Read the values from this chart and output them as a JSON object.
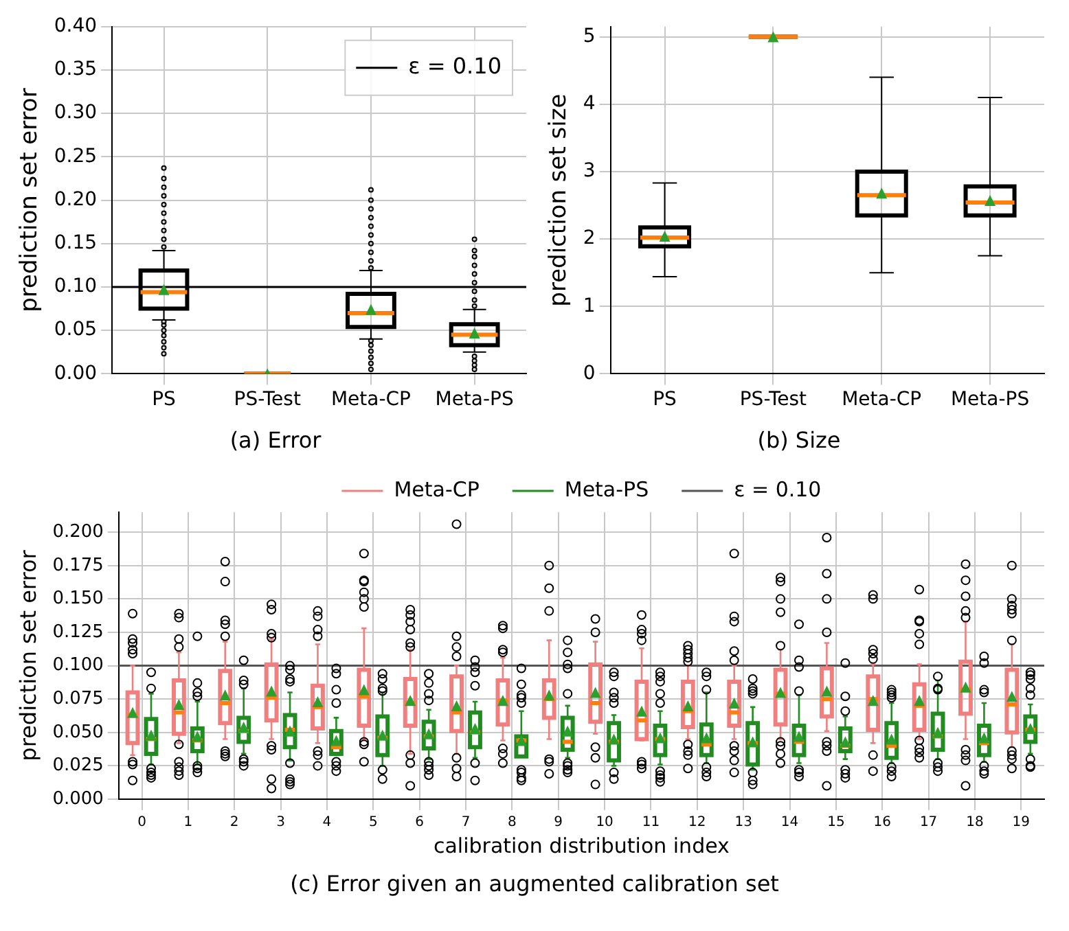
{
  "chart_data": [
    {
      "type": "box",
      "title": "(a) Error",
      "ylabel": "prediction set error",
      "categories": [
        "PS",
        "PS-Test",
        "Meta-CP",
        "Meta-PS"
      ],
      "ylim": [
        0,
        0.4
      ],
      "yticks": [
        {
          "value": 0,
          "label": "0.00"
        },
        0.05,
        {
          "value": 0.1,
          "label": "0.10"
        },
        0.15,
        {
          "value": 0.2,
          "label": "0.20"
        },
        0.25,
        {
          "value": 0.3,
          "label": "0.30"
        },
        0.35,
        {
          "value": 0.4,
          "label": "0.40"
        }
      ],
      "grid": true,
      "legend": "top right",
      "marker": "circle",
      "ref_lines": [
        {
          "axis": "y",
          "value": 0.1,
          "label": "ε = 0.10",
          "color": "#000000"
        }
      ],
      "series": [
        {
          "color": "#000000",
          "boxes": [
            {
              "low": 0.062,
              "q1": 0.075,
              "median": 0.094,
              "q3": 0.119,
              "high": 0.142,
              "mean": 0.097,
              "outliers": [
                0.023,
                0.03,
                0.037,
                0.044,
                0.05,
                0.056,
                0.06,
                0.146,
                0.155,
                0.165,
                0.175,
                0.185,
                0.195,
                0.205,
                0.215,
                0.225,
                0.237
              ]
            },
            {
              "low": 0,
              "q1": 0,
              "median": 0,
              "q3": 0,
              "high": 0,
              "mean": 0
            },
            {
              "low": 0.04,
              "q1": 0.054,
              "median": 0.07,
              "q3": 0.092,
              "high": 0.119,
              "mean": 0.074,
              "outliers": [
                0.005,
                0.012,
                0.019,
                0.026,
                0.033,
                0.038,
                0.122,
                0.13,
                0.14,
                0.15,
                0.16,
                0.17,
                0.18,
                0.19,
                0.2,
                0.212
              ]
            },
            {
              "low": 0.025,
              "q1": 0.033,
              "median": 0.045,
              "q3": 0.057,
              "high": 0.074,
              "mean": 0.047,
              "outliers": [
                0.005,
                0.01,
                0.015,
                0.02,
                0.078,
                0.085,
                0.095,
                0.105,
                0.115,
                0.125,
                0.135,
                0.142,
                0.155
              ]
            }
          ]
        }
      ]
    },
    {
      "type": "box",
      "title": "(b) Size",
      "ylabel": "prediction set size",
      "categories": [
        "PS",
        "PS-Test",
        "Meta-CP",
        "Meta-PS"
      ],
      "ylim": [
        0,
        5.15
      ],
      "yticks": [
        0,
        1,
        2,
        3,
        4,
        5
      ],
      "grid": true,
      "series": [
        {
          "color": "#000000",
          "boxes": [
            {
              "low": 1.44,
              "q1": 1.89,
              "median": 2.02,
              "q3": 2.17,
              "high": 2.83,
              "mean": 2.04
            },
            {
              "low": 5,
              "q1": 5,
              "median": 5,
              "q3": 5,
              "high": 5,
              "mean": 5
            },
            {
              "low": 1.5,
              "q1": 2.35,
              "median": 2.65,
              "q3": 3.0,
              "high": 4.4,
              "mean": 2.68
            },
            {
              "low": 1.75,
              "q1": 2.35,
              "median": 2.54,
              "q3": 2.78,
              "high": 4.1,
              "mean": 2.57
            }
          ]
        }
      ]
    },
    {
      "type": "box",
      "title": "(c) Error given an augmented calibration set",
      "xlabel": "calibration distribution index",
      "ylabel": "prediction set error",
      "categories": [
        "0",
        "1",
        "2",
        "3",
        "4",
        "5",
        "6",
        "7",
        "8",
        "9",
        "10",
        "11",
        "12",
        "13",
        "14",
        "15",
        "16",
        "17",
        "18",
        "19"
      ],
      "ylim": [
        0,
        0.215
      ],
      "yticks": [
        {
          "value": 0,
          "label": "0.000"
        },
        0.025,
        {
          "value": 0.05,
          "label": "0.050"
        },
        0.075,
        {
          "value": 0.1,
          "label": "0.100"
        },
        0.125,
        {
          "value": 0.15,
          "label": "0.150"
        },
        0.175,
        {
          "value": 0.2,
          "label": "0.200"
        }
      ],
      "grid": true,
      "legend": "top",
      "marker": "circle",
      "ref_lines": [
        {
          "axis": "y",
          "value": 0.1,
          "label": "ε = 0.10",
          "color": "#555555"
        }
      ],
      "series": [
        {
          "name": "Meta-CP",
          "color": "#f08080",
          "boxes": [
            {
              "low": 0.033,
              "q1": 0.042,
              "median": 0.063,
              "q3": 0.08,
              "high": 0.1,
              "mean": 0.065,
              "outliers": [
                0.139,
                0.12,
                0.117,
                0.112,
                0.109,
                0.028,
                0.026,
                0.014
              ]
            },
            {
              "low": 0.042,
              "q1": 0.049,
              "median": 0.065,
              "q3": 0.089,
              "high": 0.11,
              "mean": 0.071,
              "outliers": [
                0.139,
                0.136,
                0.12,
                0.114,
                0.041,
                0.028,
                0.024,
                0.021,
                0.018
              ]
            },
            {
              "low": 0.045,
              "q1": 0.057,
              "median": 0.072,
              "q3": 0.096,
              "high": 0.118,
              "mean": 0.078,
              "outliers": [
                0.178,
                0.163,
                0.134,
                0.131,
                0.122,
                0.036,
                0.034,
                0.032
              ]
            },
            {
              "low": 0.045,
              "q1": 0.059,
              "median": 0.076,
              "q3": 0.101,
              "high": 0.12,
              "mean": 0.081,
              "outliers": [
                0.146,
                0.142,
                0.124,
                0.121,
                0.04,
                0.037,
                0.015,
                0.008
              ]
            },
            {
              "low": 0.042,
              "q1": 0.053,
              "median": 0.069,
              "q3": 0.085,
              "high": 0.116,
              "mean": 0.073,
              "outliers": [
                0.141,
                0.137,
                0.127,
                0.122,
                0.036,
                0.033,
                0.025
              ]
            },
            {
              "low": 0.045,
              "q1": 0.055,
              "median": 0.077,
              "q3": 0.097,
              "high": 0.128,
              "mean": 0.082,
              "outliers": [
                0.184,
                0.164,
                0.163,
                0.155,
                0.15,
                0.144,
                0.043,
                0.041,
                0.028
              ]
            },
            {
              "low": 0.034,
              "q1": 0.055,
              "median": 0.072,
              "q3": 0.09,
              "high": 0.112,
              "mean": 0.074,
              "outliers": [
                0.142,
                0.138,
                0.133,
                0.127,
                0.117,
                0.114,
                0.033,
                0.027,
                0.01
              ]
            },
            {
              "low": 0.034,
              "q1": 0.051,
              "median": 0.065,
              "q3": 0.092,
              "high": 0.1,
              "mean": 0.07,
              "outliers": [
                0.206,
                0.122,
                0.114,
                0.107,
                0.031,
                0.023,
                0.017
              ]
            },
            {
              "low": 0.044,
              "q1": 0.056,
              "median": 0.074,
              "q3": 0.089,
              "high": 0.106,
              "mean": 0.074,
              "outliers": [
                0.13,
                0.128,
                0.112,
                0.11,
                0.038,
                0.034,
                0.027
              ]
            },
            {
              "low": 0.045,
              "q1": 0.061,
              "median": 0.075,
              "q3": 0.089,
              "high": 0.119,
              "mean": 0.078,
              "outliers": [
                0.175,
                0.158,
                0.141,
                0.03,
                0.028,
                0.019
              ]
            },
            {
              "low": 0.049,
              "q1": 0.058,
              "median": 0.072,
              "q3": 0.101,
              "high": 0.118,
              "mean": 0.08,
              "outliers": [
                0.135,
                0.125,
                0.039,
                0.031,
                0.011
              ]
            },
            {
              "low": 0.044,
              "q1": 0.045,
              "median": 0.059,
              "q3": 0.088,
              "high": 0.113,
              "mean": 0.066,
              "outliers": [
                0.138,
                0.127,
                0.124,
                0.119,
                0.028,
                0.026,
                0.023
              ]
            },
            {
              "low": 0.045,
              "q1": 0.054,
              "median": 0.066,
              "q3": 0.088,
              "high": 0.1,
              "mean": 0.07,
              "outliers": [
                0.115,
                0.112,
                0.109,
                0.106,
                0.103,
                0.041,
                0.036,
                0.033,
                0.023
              ]
            },
            {
              "low": 0.045,
              "q1": 0.055,
              "median": 0.065,
              "q3": 0.088,
              "high": 0.1,
              "mean": 0.072,
              "outliers": [
                0.184,
                0.137,
                0.133,
                0.111,
                0.104,
                0.04,
                0.036,
                0.029,
                0.02
              ]
            },
            {
              "low": 0.045,
              "q1": 0.056,
              "median": 0.079,
              "q3": 0.097,
              "high": 0.112,
              "mean": 0.08,
              "outliers": [
                0.166,
                0.163,
                0.15,
                0.14,
                0.115,
                0.043,
                0.04,
                0.034,
                0.027
              ]
            },
            {
              "low": 0.051,
              "q1": 0.062,
              "median": 0.075,
              "q3": 0.098,
              "high": 0.117,
              "mean": 0.081,
              "outliers": [
                0.196,
                0.169,
                0.15,
                0.125,
                0.043,
                0.04,
                0.036,
                0.01
              ]
            },
            {
              "low": 0.042,
              "q1": 0.052,
              "median": 0.075,
              "q3": 0.092,
              "high": 0.101,
              "mean": 0.074,
              "outliers": [
                0.153,
                0.15,
                0.112,
                0.109,
                0.105,
                0.033,
                0.021
              ]
            },
            {
              "low": 0.045,
              "q1": 0.052,
              "median": 0.07,
              "q3": 0.086,
              "high": 0.101,
              "mean": 0.074,
              "outliers": [
                0.157,
                0.134,
                0.133,
                0.124,
                0.116,
                0.044,
                0.038,
                0.035,
                0.031
              ]
            },
            {
              "low": 0.045,
              "q1": 0.064,
              "median": 0.082,
              "q3": 0.103,
              "high": 0.133,
              "mean": 0.084,
              "outliers": [
                0.176,
                0.164,
                0.152,
                0.141,
                0.136,
                0.037,
                0.033,
                0.029,
                0.01
              ]
            },
            {
              "low": 0.039,
              "q1": 0.05,
              "median": 0.071,
              "q3": 0.097,
              "high": 0.116,
              "mean": 0.077,
              "outliers": [
                0.175,
                0.15,
                0.145,
                0.142,
                0.139,
                0.119,
                0.036,
                0.033,
                0.03,
                0.023
              ]
            }
          ]
        },
        {
          "name": "Meta-PS",
          "color": "#228b22",
          "boxes": [
            {
              "low": 0.026,
              "q1": 0.034,
              "median": 0.045,
              "q3": 0.06,
              "high": 0.079,
              "mean": 0.048,
              "outliers": [
                0.095,
                0.083,
                0.023,
                0.02,
                0.018,
                0.016
              ]
            },
            {
              "low": 0.026,
              "q1": 0.036,
              "median": 0.044,
              "q3": 0.053,
              "high": 0.073,
              "mean": 0.047,
              "outliers": [
                0.122,
                0.087,
                0.08,
                0.077,
                0.025,
                0.023,
                0.02
              ]
            },
            {
              "low": 0.034,
              "q1": 0.043,
              "median": 0.051,
              "q3": 0.061,
              "high": 0.083,
              "mean": 0.054,
              "outliers": [
                0.104,
                0.089,
                0.086,
                0.03,
                0.028,
                0.025
              ]
            },
            {
              "low": 0.029,
              "q1": 0.039,
              "median": 0.052,
              "q3": 0.063,
              "high": 0.08,
              "mean": 0.051,
              "outliers": [
                0.1,
                0.097,
                0.09,
                0.088,
                0.027,
                0.015,
                0.013,
                0.011
              ]
            },
            {
              "low": 0.033,
              "q1": 0.034,
              "median": 0.039,
              "q3": 0.051,
              "high": 0.061,
              "mean": 0.044,
              "outliers": [
                0.098,
                0.094,
                0.082,
                0.072,
                0.028,
                0.025,
                0.021
              ]
            },
            {
              "low": 0.025,
              "q1": 0.033,
              "median": 0.046,
              "q3": 0.062,
              "high": 0.08,
              "mean": 0.048,
              "outliers": [
                0.094,
                0.09,
                0.083,
                0.081,
                0.022,
                0.015
              ]
            },
            {
              "low": 0.03,
              "q1": 0.038,
              "median": 0.047,
              "q3": 0.058,
              "high": 0.067,
              "mean": 0.049,
              "outliers": [
                0.094,
                0.087,
                0.079,
                0.074,
                0.028,
                0.025,
                0.022,
                0.018
              ]
            },
            {
              "low": 0.031,
              "q1": 0.039,
              "median": 0.05,
              "q3": 0.065,
              "high": 0.073,
              "mean": 0.053,
              "outliers": [
                0.104,
                0.099,
                0.095,
                0.085,
                0.027,
                0.014
              ]
            },
            {
              "low": 0.032,
              "q1": 0.032,
              "median": 0.044,
              "q3": 0.047,
              "high": 0.066,
              "mean": 0.044,
              "outliers": [
                0.098,
                0.086,
                0.078,
                0.076,
                0.072,
                0.022,
                0.02,
                0.016,
                0.014
              ]
            },
            {
              "low": 0.031,
              "q1": 0.037,
              "median": 0.043,
              "q3": 0.061,
              "high": 0.07,
              "mean": 0.051,
              "outliers": [
                0.119,
                0.11,
                0.101,
                0.098,
                0.079,
                0.027,
                0.025,
                0.022,
                0.02
              ]
            },
            {
              "low": 0.025,
              "q1": 0.029,
              "median": 0.043,
              "q3": 0.057,
              "high": 0.063,
              "mean": 0.045,
              "outliers": [
                0.095,
                0.092,
                0.08,
                0.076,
                0.072,
                0.02,
                0.015
              ]
            },
            {
              "low": 0.026,
              "q1": 0.033,
              "median": 0.045,
              "q3": 0.055,
              "high": 0.066,
              "mean": 0.046,
              "outliers": [
                0.095,
                0.092,
                0.088,
                0.079,
                0.072,
                0.021,
                0.018,
                0.016,
                0.013
              ]
            },
            {
              "low": 0.027,
              "q1": 0.033,
              "median": 0.041,
              "q3": 0.056,
              "high": 0.08,
              "mean": 0.046,
              "outliers": [
                0.095,
                0.092,
                0.082,
                0.024,
                0.02,
                0.017
              ]
            },
            {
              "low": 0.022,
              "q1": 0.026,
              "median": 0.042,
              "q3": 0.057,
              "high": 0.069,
              "mean": 0.043,
              "outliers": [
                0.09,
                0.083,
                0.081,
                0.079,
                0.02,
                0.014,
                0.011
              ]
            },
            {
              "low": 0.027,
              "q1": 0.033,
              "median": 0.043,
              "q3": 0.055,
              "high": 0.078,
              "mean": 0.047,
              "outliers": [
                0.131,
                0.104,
                0.099,
                0.081,
                0.022,
                0.02,
                0.017
              ]
            },
            {
              "low": 0.03,
              "q1": 0.036,
              "median": 0.04,
              "q3": 0.053,
              "high": 0.062,
              "mean": 0.043,
              "outliers": [
                0.102,
                0.077,
                0.066,
                0.022,
                0.019,
                0.016
              ]
            },
            {
              "low": 0.027,
              "q1": 0.031,
              "median": 0.04,
              "q3": 0.057,
              "high": 0.072,
              "mean": 0.045,
              "outliers": [
                0.082,
                0.08,
                0.078,
                0.076,
                0.024,
                0.021,
                0.017
              ]
            },
            {
              "low": 0.03,
              "q1": 0.037,
              "median": 0.047,
              "q3": 0.064,
              "high": 0.089,
              "mean": 0.05,
              "outliers": [
                0.092,
                0.083,
                0.082,
                0.027,
                0.024,
                0.021
              ]
            },
            {
              "low": 0.028,
              "q1": 0.033,
              "median": 0.042,
              "q3": 0.055,
              "high": 0.072,
              "mean": 0.046,
              "outliers": [
                0.107,
                0.102,
                0.082,
                0.08,
                0.025,
                0.021,
                0.019
              ]
            },
            {
              "low": 0.034,
              "q1": 0.043,
              "median": 0.052,
              "q3": 0.062,
              "high": 0.071,
              "mean": 0.053,
              "outliers": [
                0.095,
                0.093,
                0.09,
                0.083,
                0.078,
                0.03,
                0.025,
                0.024
              ]
            }
          ]
        }
      ]
    }
  ]
}
